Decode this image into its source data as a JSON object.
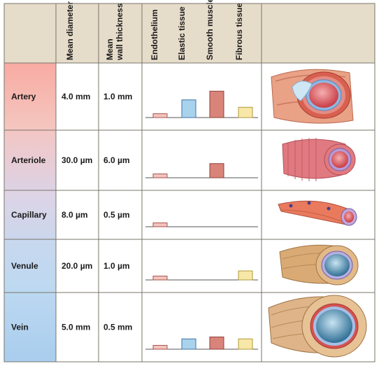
{
  "headers": {
    "mean_diameter": "Mean diameter",
    "wall_line1": "Mean",
    "wall_line2": "wall thickness",
    "tissues": [
      "Endothelium",
      "Elastic tissue",
      "Smooth muscle",
      "Fibrous tissue"
    ]
  },
  "colors": {
    "header_bg": "#e6dcca",
    "grid": "#7a7468",
    "endothelium": "#f2c4bd",
    "elastic": "#a9d2ec",
    "smooth_muscle": "#d9847a",
    "fibrous": "#f7e8a8",
    "artery_bg": "#f5b9b1",
    "arteriole_bg": "#f0cfd3",
    "capillary_bg": "#d9d5ea",
    "venule_bg": "#c2dbef",
    "vein_bg": "#bad8f0"
  },
  "vessels": [
    {
      "name": "Artery",
      "diameter": "4.0 mm",
      "wall": "1.0 mm",
      "tissue": [
        0.12,
        0.55,
        0.82,
        0.32
      ],
      "icon": "artery-cross-section-icon"
    },
    {
      "name": "Arteriole",
      "diameter": "30.0 µm",
      "wall": "6.0 µm",
      "tissue": [
        0.12,
        0,
        0.44,
        0
      ],
      "icon": "arteriole-cross-section-icon"
    },
    {
      "name": "Capillary",
      "diameter": "8.0 µm",
      "wall": "0.5 µm",
      "tissue": [
        0.12,
        0,
        0,
        0
      ],
      "icon": "capillary-cross-section-icon"
    },
    {
      "name": "Venule",
      "diameter": "20.0 µm",
      "wall": "1.0 µm",
      "tissue": [
        0.12,
        0,
        0,
        0.28
      ],
      "icon": "venule-cross-section-icon"
    },
    {
      "name": "Vein",
      "diameter": "5.0 mm",
      "wall": "0.5 mm",
      "tissue": [
        0.12,
        0.32,
        0.38,
        0.32
      ],
      "icon": "vein-cross-section-icon"
    }
  ]
}
